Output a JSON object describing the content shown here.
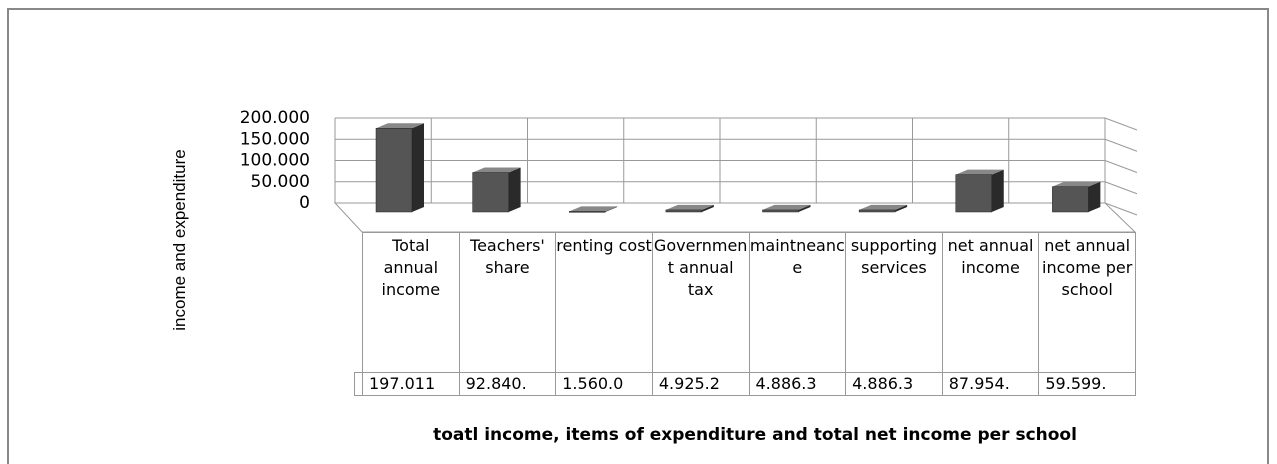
{
  "chart_data": {
    "type": "bar3d",
    "x_label": "toatl income, items of expenditure and total net income per school",
    "y_label": "income and expenditure",
    "categories": [
      "Total annual income",
      "Teachers' share",
      "renting cost",
      "Government annual tax",
      "maintneance",
      "supporting services",
      "net annual income",
      "net annual income per school"
    ],
    "values": [
      197011,
      92840,
      1560,
      4925,
      4886,
      4886,
      87954,
      59599
    ],
    "value_labels": [
      "197.011",
      "92.840.",
      "1.560.0",
      "4.925.2",
      "4.886.3",
      "4.886.3",
      "87.954.",
      "59.599."
    ],
    "color": "#555555",
    "ylim": [
      0,
      200000
    ],
    "yticks": [
      0,
      {
        "value": 50000,
        "label": "50.000"
      },
      {
        "value": 100000,
        "label": "100.000"
      },
      {
        "value": 150000,
        "label": "150.000"
      },
      {
        "value": 200000,
        "label": "200.000"
      }
    ],
    "grid": true
  }
}
